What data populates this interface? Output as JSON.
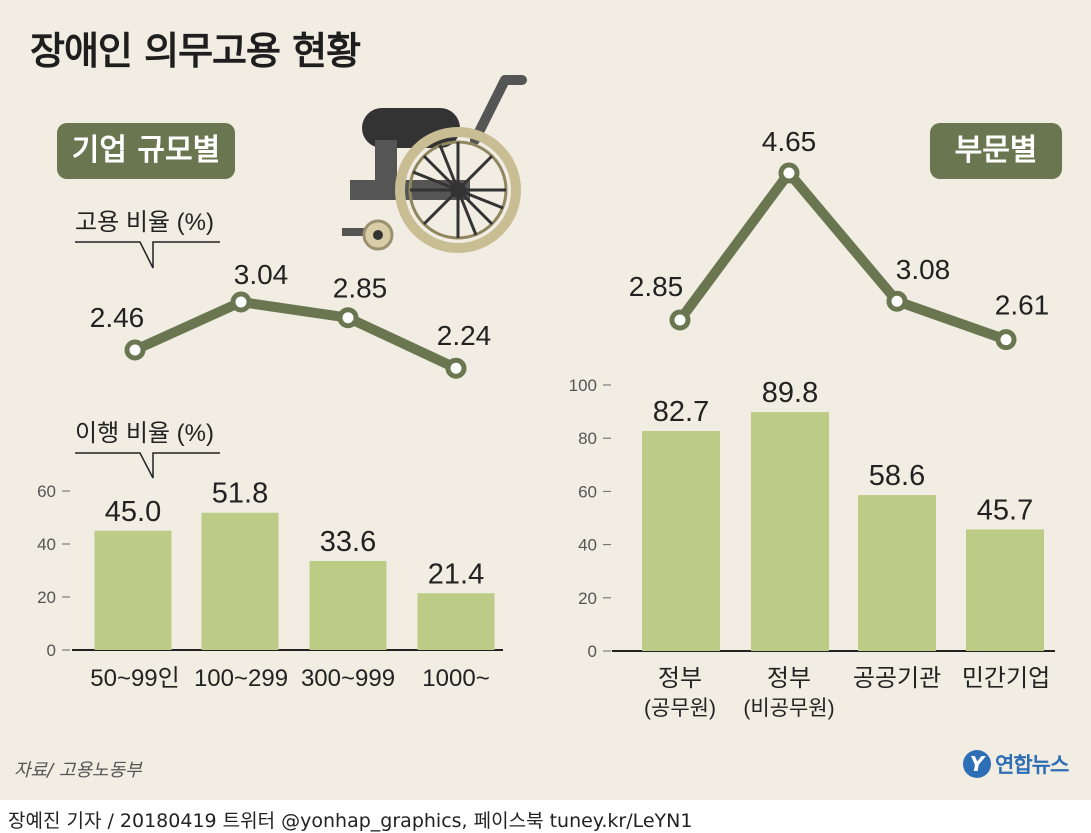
{
  "title": "장애인 의무고용 현황",
  "sections": {
    "left_badge": "기업 규모별",
    "right_badge": "부문별"
  },
  "source": "자료/ 고용노동부",
  "credit": "장예진 기자 / 20180419 트위터 @yonhap_graphics, 페이스북 tuney.kr/LeYN1",
  "logo": {
    "mark": "Y",
    "name": "연합뉴스",
    "color": "#2E6EB5"
  },
  "colors": {
    "line": "#6A7650",
    "bar": "#BCCB86",
    "background": "#F1EDE2",
    "badge": "#6A7650"
  },
  "icons": [
    "wheelchair-icon"
  ],
  "chart_data": [
    {
      "type": "line",
      "ylabel": "고용 비율 (%)",
      "categories": [
        "50~99인",
        "100~299",
        "300~999",
        "1000~"
      ],
      "values": [
        2.46,
        3.04,
        2.85,
        2.24
      ],
      "data_labels": [
        "2.46",
        "3.04",
        "2.85",
        "2.24"
      ]
    },
    {
      "type": "bar",
      "ylabel": "이행 비율 (%)",
      "categories": [
        "50~99인",
        "100~299",
        "300~999",
        "1000~"
      ],
      "values": [
        45.0,
        51.8,
        33.6,
        21.4
      ],
      "data_labels": [
        "45.0",
        "51.8",
        "33.6",
        "21.4"
      ],
      "ylim": [
        0,
        60
      ],
      "yticks": [
        "0",
        "20",
        "40",
        "60"
      ]
    },
    {
      "type": "line",
      "categories": [
        "정부 (공무원)",
        "정부 (비공무원)",
        "공공기관",
        "민간기업"
      ],
      "values": [
        2.85,
        4.65,
        3.08,
        2.61
      ],
      "data_labels": [
        "2.85",
        "4.65",
        "3.08",
        "2.61"
      ]
    },
    {
      "type": "bar",
      "categories": [
        [
          "정부",
          "(공무원)"
        ],
        [
          "정부",
          "(비공무원)"
        ],
        [
          "공공기관"
        ],
        [
          "민간기업"
        ]
      ],
      "values": [
        82.7,
        89.8,
        58.6,
        45.7
      ],
      "data_labels": [
        "82.7",
        "89.8",
        "58.6",
        "45.7"
      ],
      "ylim": [
        0,
        100
      ],
      "yticks": [
        "0",
        "20",
        "40",
        "60",
        "80",
        "100"
      ]
    }
  ]
}
